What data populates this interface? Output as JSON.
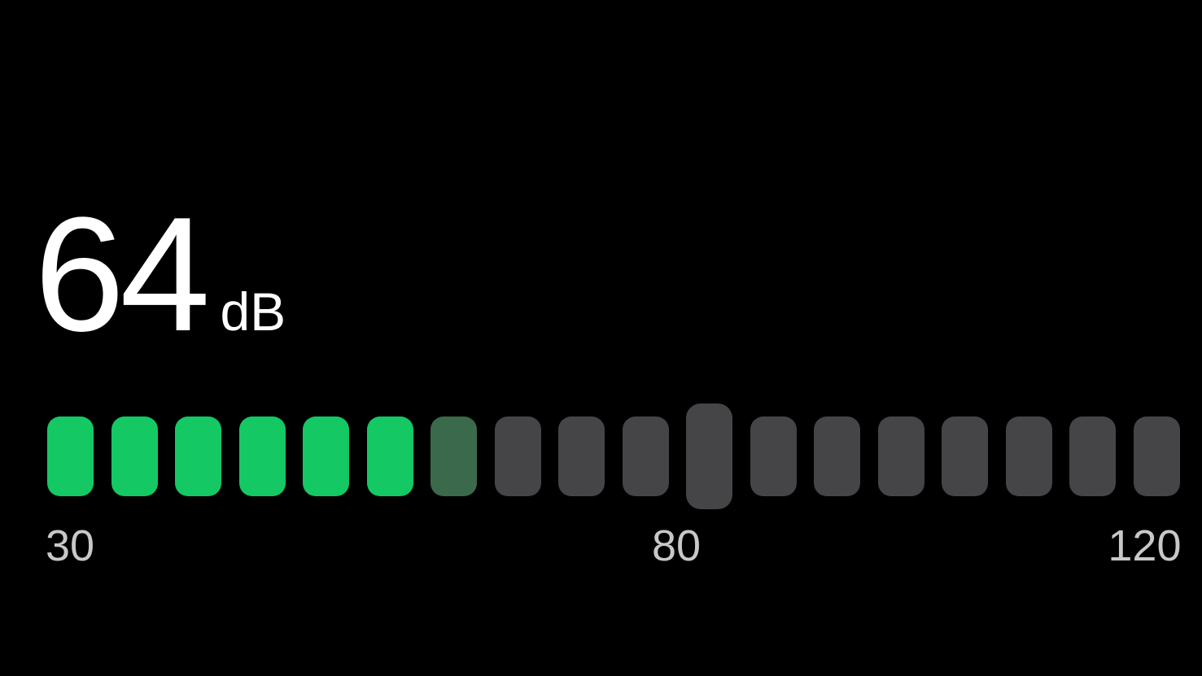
{
  "reading": {
    "value": "64",
    "unit": "dB"
  },
  "meter": {
    "segment_count": 18,
    "active_segments": 6,
    "partial_segments": 1,
    "threshold_segment_index": 10,
    "scale_min": 30,
    "scale_max": 120,
    "colors": {
      "active": "#14c864",
      "partial": "#3a6a4b",
      "inactive": "#454547",
      "tick_text": "#c8c8c8"
    },
    "tick_labels": [
      "30",
      "80",
      "120"
    ]
  }
}
